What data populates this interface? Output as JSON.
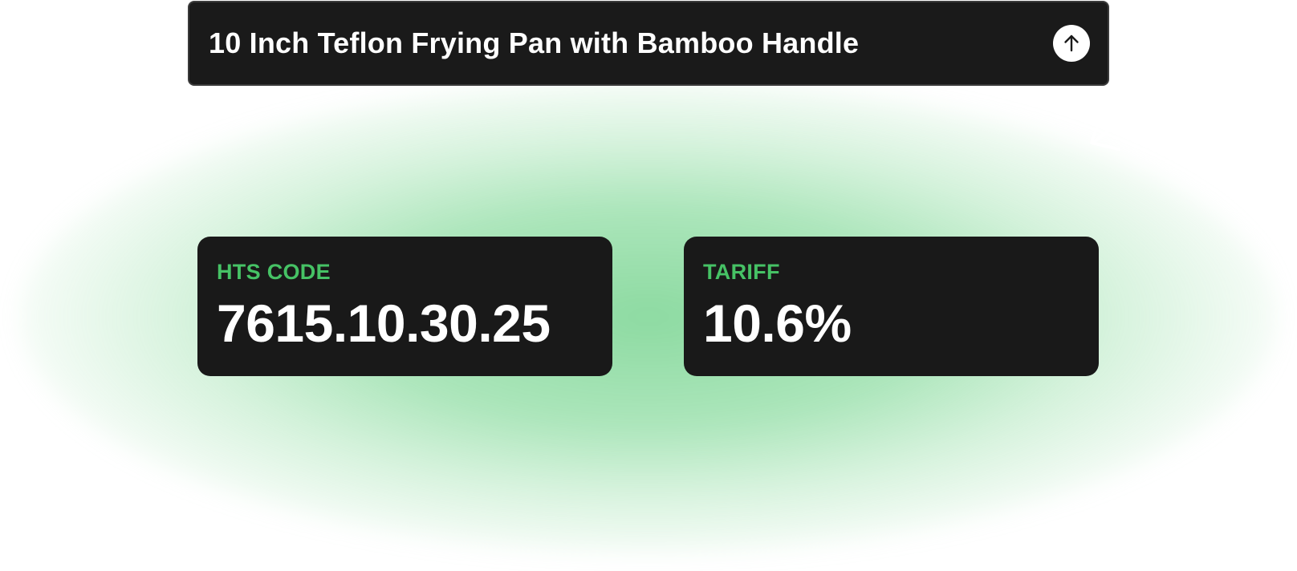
{
  "search": {
    "query": "10 Inch Teflon Frying Pan with Bamboo Handle",
    "submit_icon": "arrow-up-icon"
  },
  "results": {
    "hts": {
      "label": "HTS CODE",
      "value": "7615.10.30.25"
    },
    "tariff": {
      "label": "TARIFF",
      "value": "10.6%"
    }
  },
  "colors": {
    "accent_green": "#46c265",
    "card_bg": "#191919",
    "glow": "#5fd07f"
  }
}
